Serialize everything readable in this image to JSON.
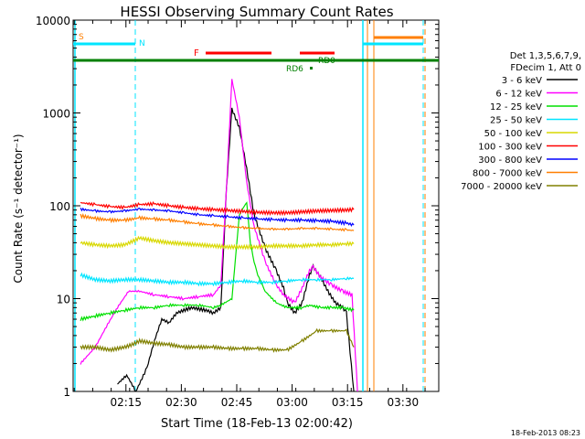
{
  "chart_data": {
    "type": "line",
    "title": "HESSI Observing Summary Count Rates",
    "xlabel": "Start Time (18-Feb-13 02:00:42)",
    "ylabel": "Count Rate (s⁻¹ detector⁻¹)",
    "footer": "18-Feb-2013 08:23",
    "xlim_minutes": [
      2.0,
      41.0
    ],
    "x_ticks": [
      {
        "t": 14.3,
        "label": "02:15"
      },
      {
        "t": 29.3,
        "label": "02:30"
      },
      {
        "t": 44.3,
        "label": "02:45"
      },
      {
        "t": 59.3,
        "label": "03:00"
      },
      {
        "t": 74.3,
        "label": "03:15"
      },
      {
        "t": 89.3,
        "label": "03:30"
      }
    ],
    "xlim": [
      0,
      99
    ],
    "ylim": [
      1,
      10000
    ],
    "yscale": "log",
    "y_ticks": [
      {
        "v": 1,
        "label": "1"
      },
      {
        "v": 10,
        "label": "10"
      },
      {
        "v": 100,
        "label": "100"
      },
      {
        "v": 1000,
        "label": "1000"
      },
      {
        "v": 10000,
        "label": "10000"
      }
    ],
    "legend": {
      "placement": "right",
      "header": [
        "Det 1,3,5,6,7,9,",
        "FDecim 1, Att 0"
      ],
      "entries": [
        {
          "label": "3 - 6 keV",
          "color": "#000000"
        },
        {
          "label": "6 - 12 keV",
          "color": "#ff00ff"
        },
        {
          "label": "12 - 25 keV",
          "color": "#00e000"
        },
        {
          "label": "25 - 50 keV",
          "color": "#00e5ff"
        },
        {
          "label": "50 - 100 keV",
          "color": "#d8d800"
        },
        {
          "label": "100 - 300 keV",
          "color": "#ff0000"
        },
        {
          "label": "300 - 800 keV",
          "color": "#0000ff"
        },
        {
          "label": "800 - 7000 keV",
          "color": "#ff7f00"
        },
        {
          "label": "7000 - 20000 keV",
          "color": "#808000"
        }
      ]
    },
    "flags": [
      {
        "label": "S",
        "color": "#ff7f00"
      },
      {
        "label": "N",
        "color": "#00e5ff"
      },
      {
        "label": "F",
        "color": "#ff0000"
      },
      {
        "label": "RD6",
        "color": "#008000"
      },
      {
        "label": "RD0",
        "color": "#008000"
      }
    ],
    "series": [
      {
        "name": "3 - 6 keV",
        "color": "#000000",
        "x": [
          12,
          14.5,
          17,
          20,
          22,
          24,
          26,
          28,
          32,
          36,
          38,
          40,
          41.5,
          43,
          45,
          47,
          49,
          52,
          55,
          57,
          58,
          60,
          62,
          64,
          65,
          67,
          69,
          71,
          73,
          74,
          76
        ],
        "y": [
          1.2,
          1.5,
          1,
          1.8,
          3.5,
          6,
          5.5,
          7,
          8,
          7.5,
          7,
          8,
          150,
          1100,
          700,
          250,
          80,
          35,
          20,
          13,
          9,
          7,
          9,
          18,
          22,
          17,
          12,
          9,
          8,
          7,
          1
        ]
      },
      {
        "name": "6 - 12 keV",
        "color": "#ff00ff",
        "x": [
          2,
          6,
          9,
          12,
          15,
          18,
          22,
          26,
          30,
          34,
          38,
          40,
          41.5,
          43,
          45,
          47,
          49,
          52,
          55,
          57,
          60,
          62,
          64,
          65,
          67,
          70,
          73,
          75.5,
          77
        ],
        "y": [
          2,
          3,
          5,
          8,
          12,
          12,
          11,
          10.5,
          10,
          10.5,
          11,
          14,
          150,
          2300,
          900,
          180,
          60,
          25,
          14,
          11,
          9,
          13,
          20,
          22,
          17,
          14,
          12,
          11,
          1
        ]
      },
      {
        "name": "12 - 25 keV",
        "color": "#00e000",
        "x": [
          2,
          6,
          10,
          14,
          18,
          22,
          26,
          30,
          34,
          38,
          40,
          43,
          45,
          47,
          48,
          49,
          50,
          52,
          55,
          58,
          62,
          64,
          67,
          70,
          73,
          76
        ],
        "y": [
          6,
          6.5,
          7,
          7.5,
          8,
          8,
          8.5,
          8.5,
          8.5,
          8,
          8.5,
          10,
          80,
          110,
          40,
          25,
          18,
          12,
          9,
          8,
          8,
          8.5,
          8,
          8,
          8,
          7.5
        ]
      },
      {
        "name": "25 - 50 keV",
        "color": "#00e5ff",
        "x": [
          2,
          6,
          10,
          14,
          18,
          22,
          26,
          30,
          34,
          38,
          42,
          46,
          50,
          54,
          58,
          62,
          66,
          70,
          74,
          76
        ],
        "y": [
          18,
          16,
          15.5,
          16,
          16,
          15.5,
          15,
          15,
          14.5,
          14.5,
          15,
          15.5,
          15,
          15,
          15.5,
          16,
          16,
          16,
          16.5,
          16.5
        ]
      },
      {
        "name": "50 - 100 keV",
        "color": "#d8d800",
        "x": [
          2,
          6,
          10,
          14,
          18,
          22,
          26,
          30,
          34,
          38,
          42,
          46,
          50,
          54,
          58,
          62,
          66,
          70,
          74,
          76
        ],
        "y": [
          40,
          38,
          37,
          38,
          45,
          42,
          40,
          39,
          38,
          37,
          36,
          36,
          36,
          37,
          37,
          37,
          38,
          38,
          39,
          39
        ]
      },
      {
        "name": "100 - 300 keV",
        "color": "#ff0000",
        "x": [
          2,
          6,
          10,
          14,
          18,
          22,
          26,
          30,
          34,
          38,
          42,
          46,
          50,
          54,
          58,
          62,
          66,
          70,
          74,
          76
        ],
        "y": [
          108,
          103,
          98,
          96,
          103,
          105,
          100,
          96,
          93,
          91,
          89,
          87,
          85,
          84,
          84,
          86,
          88,
          89,
          90,
          91
        ]
      },
      {
        "name": "300 - 800 keV",
        "color": "#0000ff",
        "x": [
          2,
          6,
          10,
          14,
          18,
          22,
          26,
          30,
          34,
          38,
          42,
          46,
          50,
          54,
          58,
          62,
          66,
          70,
          74,
          76
        ],
        "y": [
          92,
          88,
          86,
          88,
          92,
          90,
          88,
          84,
          80,
          78,
          76,
          74,
          72,
          71,
          70,
          70,
          69,
          68,
          65,
          62
        ]
      },
      {
        "name": "800 - 7000 keV",
        "color": "#ff7f00",
        "x": [
          2,
          6,
          10,
          14,
          18,
          22,
          26,
          30,
          34,
          38,
          42,
          46,
          50,
          54,
          58,
          62,
          66,
          70,
          74,
          76
        ],
        "y": [
          78,
          73,
          70,
          70,
          74,
          72,
          70,
          67,
          64,
          62,
          60,
          58,
          57,
          56,
          56,
          57,
          57,
          56,
          55,
          54
        ]
      },
      {
        "name": "7000 - 20000 keV",
        "color": "#808000",
        "x": [
          2,
          6,
          10,
          14,
          16,
          18,
          22,
          26,
          30,
          34,
          38,
          42,
          46,
          50,
          54,
          58,
          62,
          66,
          70,
          74,
          76
        ],
        "y": [
          3,
          3,
          2.8,
          3,
          3.2,
          3.5,
          3.3,
          3.2,
          3,
          3,
          3,
          2.9,
          2.9,
          2.9,
          2.8,
          2.8,
          3.5,
          4.5,
          4.5,
          4.5,
          3
        ]
      }
    ]
  }
}
